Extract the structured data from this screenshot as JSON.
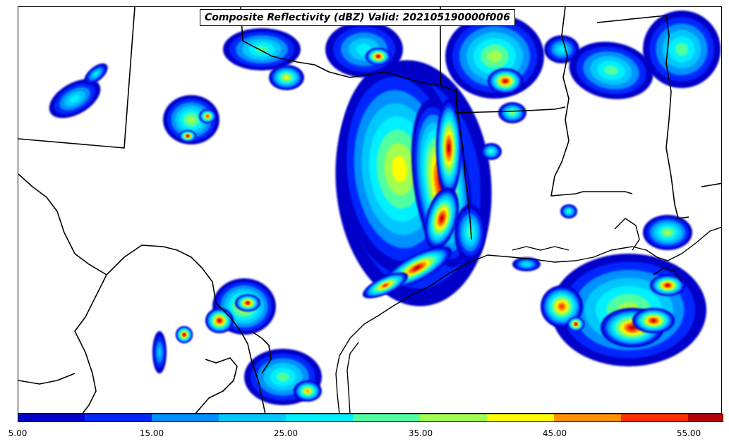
{
  "title": "Composite Reflectivity (dBZ) Valid: 202105190000f006",
  "colorbar": {
    "tick_labels": [
      "5.00",
      "15.00",
      "25.00",
      "35.00",
      "45.00",
      "55.00"
    ],
    "levels": [
      5,
      10,
      15,
      20,
      25,
      30,
      35,
      40,
      45,
      50,
      55
    ],
    "colors": [
      "#0000c8",
      "#0028ff",
      "#0090ff",
      "#00c8ff",
      "#00f0ff",
      "#50ffa0",
      "#a0ff50",
      "#ffff00",
      "#ff9000",
      "#ff3000",
      "#b40000"
    ],
    "extend": "max"
  },
  "layers": {
    "reflectivity": "reflectivity-field",
    "boundaries": "state-and-country-boundaries",
    "coastline": "coastline"
  }
}
